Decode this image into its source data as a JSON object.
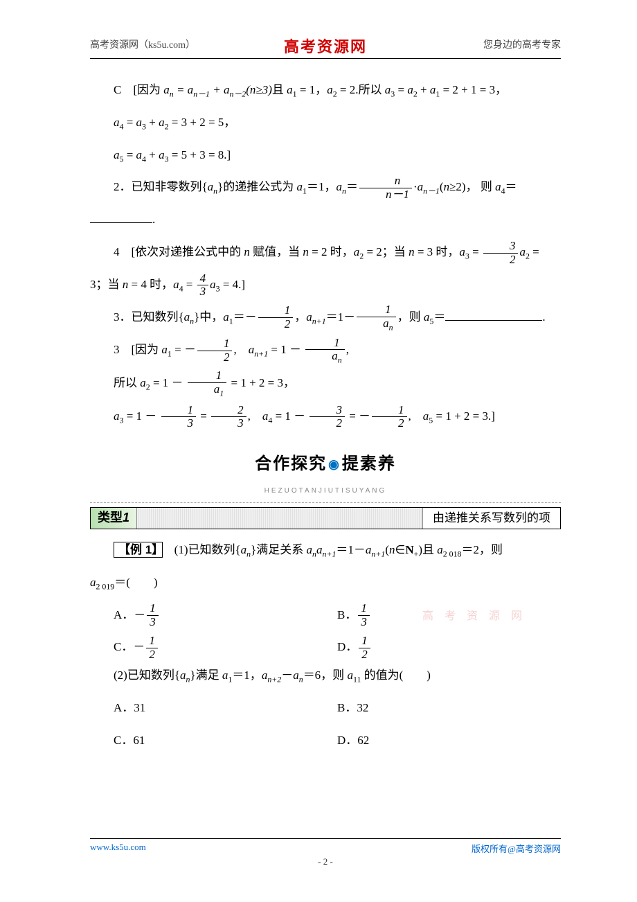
{
  "header": {
    "left": "高考资源网（ks5u.com）",
    "center": "高考资源网",
    "right": "您身边的高考专家"
  },
  "body": {
    "line1_prefix": "C　[因为 ",
    "line1_expr": "aₙ = aₙ₋₁ + aₙ₋₂(n≥3)且 a₁ = 1，a₂ = 2.所以 a₃ = a₂ + a₁ = 2 + 1 = 3，",
    "line2": "a₄ = a₃ + a₂ = 3 + 2 = 5，",
    "line3": "a₅ = a₄ + a₃ = 5 + 3 = 8.]",
    "q2_prefix": "2．已知非零数列{aₙ}的递推公式为 a₁＝1，aₙ＝",
    "q2_frac_num": "n",
    "q2_frac_den": "n－1",
    "q2_suffix": "·aₙ₋₁(n≥2)， 则 a₄＝",
    "q2_blank_end": ".",
    "a2_prefix": "4　[依次对递推公式中的 n 赋值，当 n = 2 时，a₂ = 2；当 n = 3 时，a₃ = ",
    "a2_frac1_num": "3",
    "a2_frac1_den": "2",
    "a2_mid": "a₂ =",
    "a2_line2_prefix": "3；当 n = 4 时，a₄ = ",
    "a2_frac2_num": "4",
    "a2_frac2_den": "3",
    "a2_line2_suffix": "a₃ = 4.]",
    "q3_prefix": "3．已知数列{aₙ}中，a₁＝－",
    "q3_frac1_num": "1",
    "q3_frac1_den": "2",
    "q3_mid": "，aₙ₊₁＝1－",
    "q3_frac2_num": "1",
    "q3_frac2_den": "aₙ",
    "q3_suffix": "，则 a₅＝",
    "q3_end": ".",
    "a3_prefix": "3　[因为 a₁ = －",
    "a3_frac1_num": "1",
    "a3_frac1_den": "2",
    "a3_mid": ",　aₙ₊₁ = 1 － ",
    "a3_frac2_num": "1",
    "a3_frac2_den": "aₙ",
    "a3_suffix": ",",
    "a3_l2_prefix": "所以 a₂ = 1 － ",
    "a3_l2_frac_num": "1",
    "a3_l2_frac_den": "a₁",
    "a3_l2_suffix": " = 1 + 2 = 3，",
    "a3_l3_p1": "a₃ = 1 － ",
    "a3_l3_f1n": "1",
    "a3_l3_f1d": "3",
    "a3_l3_p2": " = ",
    "a3_l3_f2n": "2",
    "a3_l3_f2d": "3",
    "a3_l3_p3": ",　a₄ = 1 － ",
    "a3_l3_f3n": "3",
    "a3_l3_f3d": "2",
    "a3_l3_p4": " = －",
    "a3_l3_f4n": "1",
    "a3_l3_f4d": "2",
    "a3_l3_p5": ",　a₅ = 1 + 2 = 3.]"
  },
  "banner": {
    "left": "合作探究",
    "right": "提素养",
    "pinyin": "HEZUOTANJIUTISUYANG"
  },
  "typebar": {
    "left_label": "类型",
    "left_num": "1",
    "right": "由递推关系写数列的项"
  },
  "example": {
    "label": "【例 1】",
    "q1_prefix": "　(1)已知数列{aₙ}满足关系 aₙaₙ₊₁＝1－aₙ₊₁(n∈N₊)且 a₂ ₀₁₈＝2，则",
    "q1_line2": "a₂ ₀₁₉＝(　　)",
    "choices1": {
      "A_pre": "A．－",
      "A_num": "1",
      "A_den": "3",
      "B_pre": "B．",
      "B_num": "1",
      "B_den": "3",
      "C_pre": "C．－",
      "C_num": "1",
      "C_den": "2",
      "D_pre": "D．",
      "D_num": "1",
      "D_den": "2"
    },
    "q2": "(2)已知数列{aₙ}满足 a₁＝1，aₙ₊₂－aₙ＝6，则 a₁₁ 的值为(　　)",
    "choices2": {
      "A": "A．31",
      "B": "B．32",
      "C": "C．61",
      "D": "D．62"
    }
  },
  "watermark": "高 考 资 源 网",
  "footer": {
    "left": "www.ks5u.com",
    "right": "版权所有@高考资源网",
    "page": "- 2 -"
  },
  "colors": {
    "brand_red": "#d00000",
    "link_blue": "#0066cc",
    "accent_blue": "#0070c0",
    "text": "#000000",
    "bg": "#ffffff"
  }
}
